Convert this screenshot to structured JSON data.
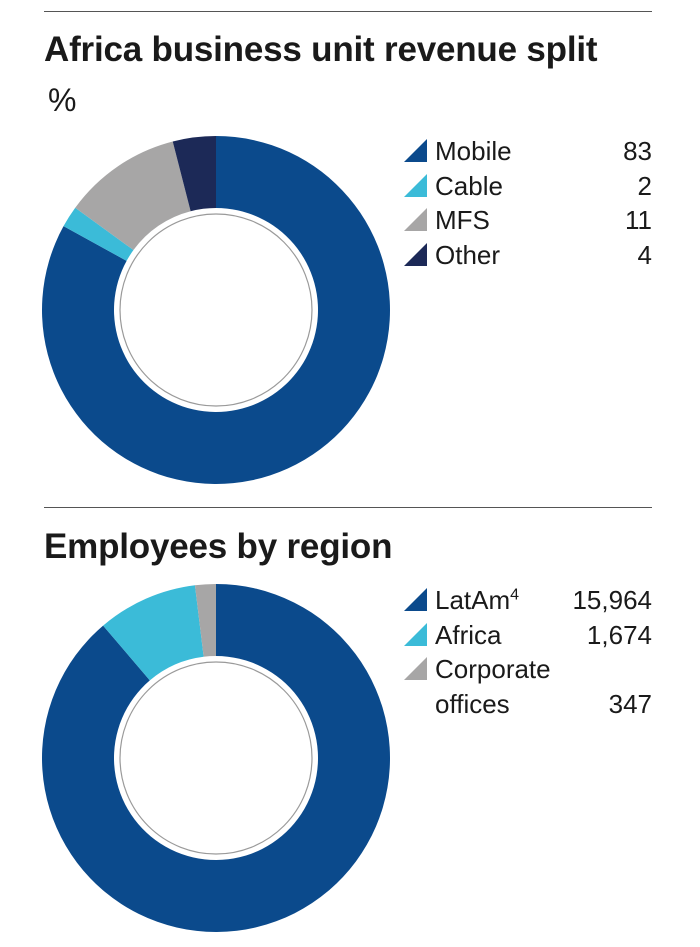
{
  "charts": [
    {
      "id": "africa",
      "title": "Africa business unit revenue split",
      "unit": "%",
      "colors": [
        "#0b4a8c",
        "#3bbbd8",
        "#a7a6a6",
        "#1c2957"
      ],
      "chart_data": {
        "type": "pie",
        "title": "Africa business unit revenue split",
        "unit": "%",
        "categories": [
          "Mobile",
          "Cable",
          "MFS",
          "Other"
        ],
        "values": [
          83,
          2,
          11,
          4
        ],
        "legend_position": "right"
      },
      "legend": [
        {
          "label": "Mobile",
          "value": "83"
        },
        {
          "label": "Cable",
          "value": "2"
        },
        {
          "label": "MFS",
          "value": "11"
        },
        {
          "label": "Other",
          "value": "4"
        }
      ]
    },
    {
      "id": "employees",
      "title": "Employees by region",
      "colors": [
        "#0b4a8c",
        "#3bbbd8",
        "#a7a6a6"
      ],
      "chart_data": {
        "type": "pie",
        "title": "Employees by region",
        "categories": [
          "LatAm4",
          "Africa",
          "Corporate offices"
        ],
        "values": [
          15964,
          1674,
          347
        ],
        "legend_position": "right"
      },
      "legend": [
        {
          "label": "LatAm",
          "sup": "4",
          "value": "15,964"
        },
        {
          "label": "Africa",
          "value": "1,674"
        },
        {
          "label": "Corporate\noffices",
          "value": "347"
        }
      ]
    }
  ]
}
